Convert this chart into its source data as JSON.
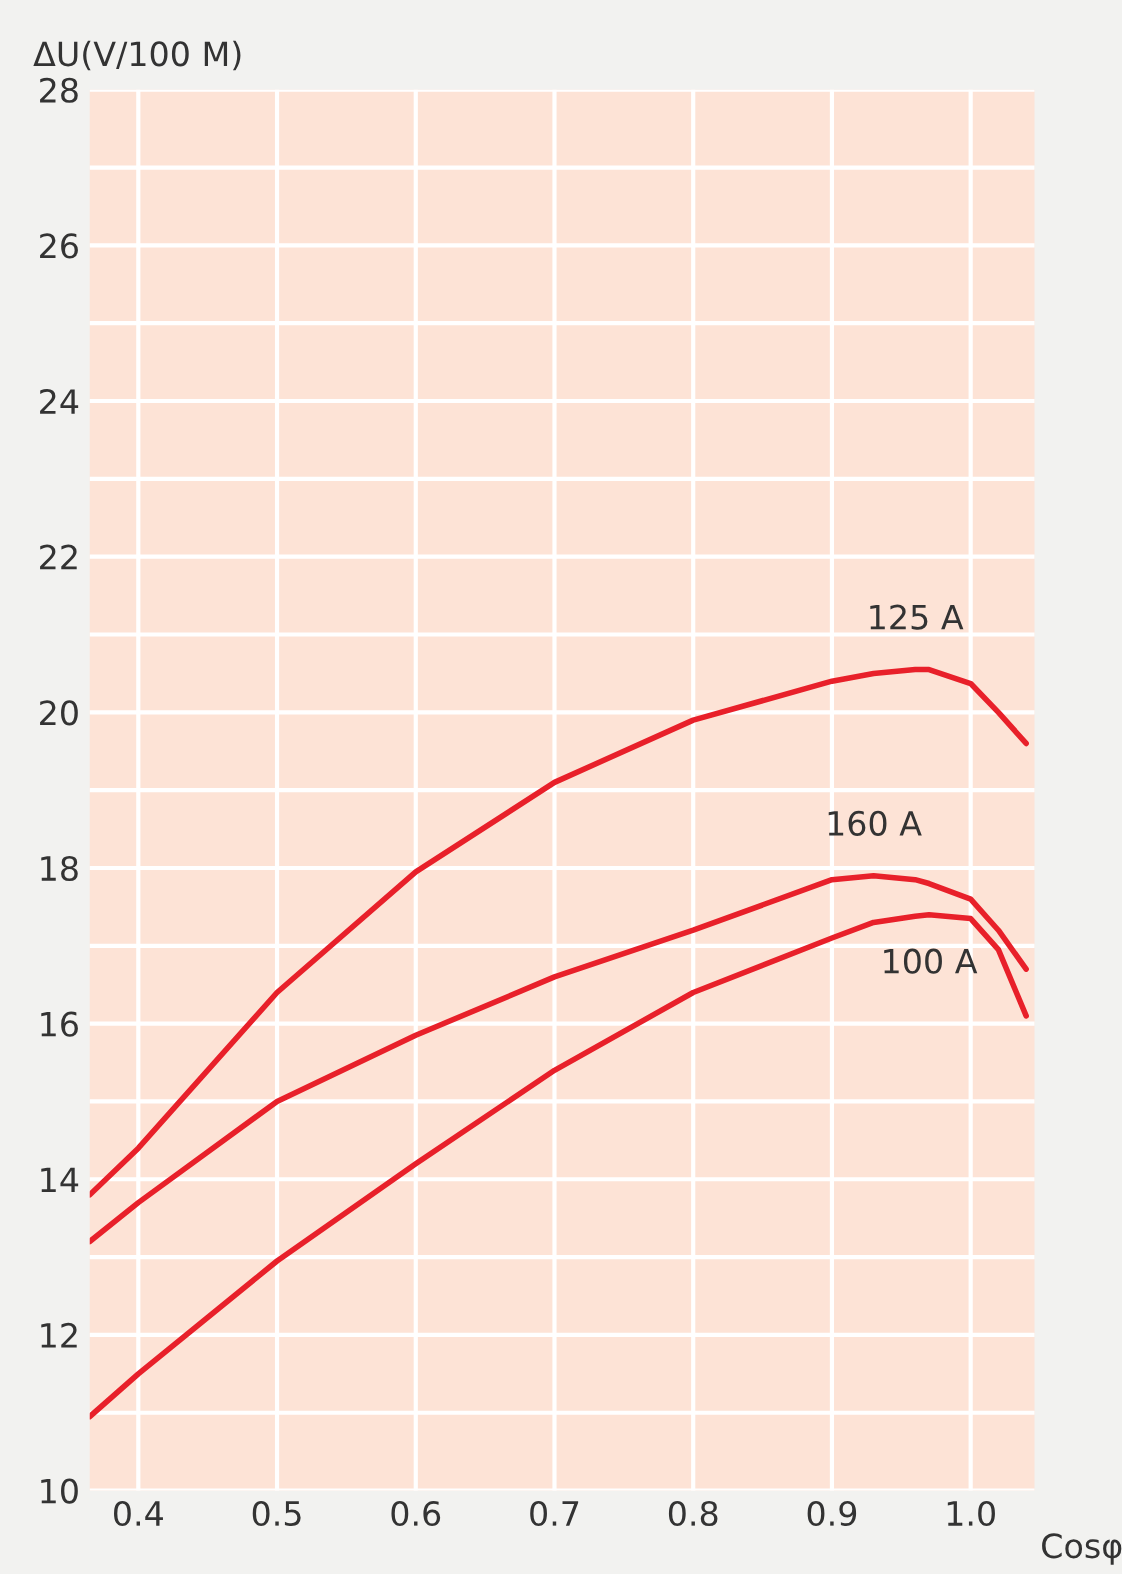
{
  "chart_data": {
    "type": "line",
    "xlabel": "Cosφ",
    "ylabel": "ΔU(V/100 M)",
    "xlim": [
      0.365,
      1.046
    ],
    "ylim": [
      10,
      28
    ],
    "xticks": [
      0.4,
      0.5,
      0.6,
      0.7,
      0.8,
      0.9,
      {
        "value": 1.0,
        "label": "1.0"
      }
    ],
    "yticks": [
      10,
      {
        "value": 11,
        "label": null
      },
      12,
      {
        "value": 13,
        "label": null
      },
      14,
      {
        "value": 15,
        "label": null
      },
      16,
      {
        "value": 17,
        "label": null
      },
      18,
      {
        "value": 19,
        "label": null
      },
      20,
      {
        "value": 21,
        "label": null
      },
      22,
      {
        "value": 23,
        "label": null
      },
      24,
      {
        "value": 25,
        "label": null
      },
      26,
      {
        "value": 27,
        "label": null
      },
      28
    ],
    "grid": true,
    "line_style": "solid",
    "marker": "none",
    "x": [
      0.365,
      0.4,
      0.5,
      0.6,
      0.7,
      0.8,
      0.9,
      0.93,
      0.96,
      0.97,
      1.0,
      1.02,
      1.04
    ],
    "series": [
      {
        "name": "125 A",
        "color": "#e8202a",
        "values": [
          13.8,
          14.4,
          16.4,
          17.95,
          19.1,
          19.9,
          20.4,
          20.5,
          20.55,
          20.55,
          20.37,
          20.0,
          19.6
        ]
      },
      {
        "name": "160 A",
        "color": "#e8202a",
        "values": [
          13.2,
          13.7,
          15.0,
          15.85,
          16.6,
          17.2,
          17.85,
          17.9,
          17.85,
          17.8,
          17.6,
          17.2,
          16.7
        ]
      },
      {
        "name": "100 A",
        "color": "#e8202a",
        "values": [
          10.95,
          11.5,
          12.95,
          14.2,
          15.4,
          16.4,
          17.1,
          17.3,
          17.38,
          17.4,
          17.35,
          16.95,
          16.1
        ]
      }
    ]
  }
}
